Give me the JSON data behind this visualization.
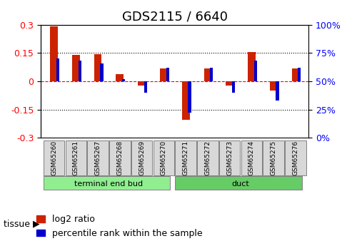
{
  "title": "GDS2115 / 6640",
  "samples": [
    "GSM65260",
    "GSM65261",
    "GSM65267",
    "GSM65268",
    "GSM65269",
    "GSM65270",
    "GSM65271",
    "GSM65272",
    "GSM65273",
    "GSM65274",
    "GSM65275",
    "GSM65276"
  ],
  "log2_ratio": [
    0.29,
    0.14,
    0.145,
    0.038,
    -0.022,
    0.068,
    -0.205,
    0.068,
    -0.022,
    0.155,
    -0.048,
    0.068
  ],
  "pct_rank_raw": [
    70,
    68,
    66,
    52,
    40,
    62,
    22,
    62,
    40,
    68,
    33,
    62
  ],
  "tissue_groups": [
    {
      "label": "terminal end bud",
      "start": 0,
      "end": 6,
      "color": "#90ee90"
    },
    {
      "label": "duct",
      "start": 6,
      "end": 12,
      "color": "#66cc66"
    }
  ],
  "bar_color_red": "#cc2200",
  "bar_color_blue": "#0000cc",
  "ylim_left": [
    -0.3,
    0.3
  ],
  "ylim_right": [
    0,
    100
  ],
  "yticks_left": [
    -0.3,
    -0.15,
    0.0,
    0.15,
    0.3
  ],
  "yticks_right": [
    0,
    25,
    50,
    75,
    100
  ],
  "hline_dotted_values": [
    0.15,
    -0.15
  ],
  "hline_red_value": 0.0,
  "background_color": "#ffffff",
  "title_fontsize": 13,
  "tick_fontsize": 9,
  "legend_fontsize": 9,
  "tissue_label": "tissue",
  "tissue_label_fontsize": 9
}
